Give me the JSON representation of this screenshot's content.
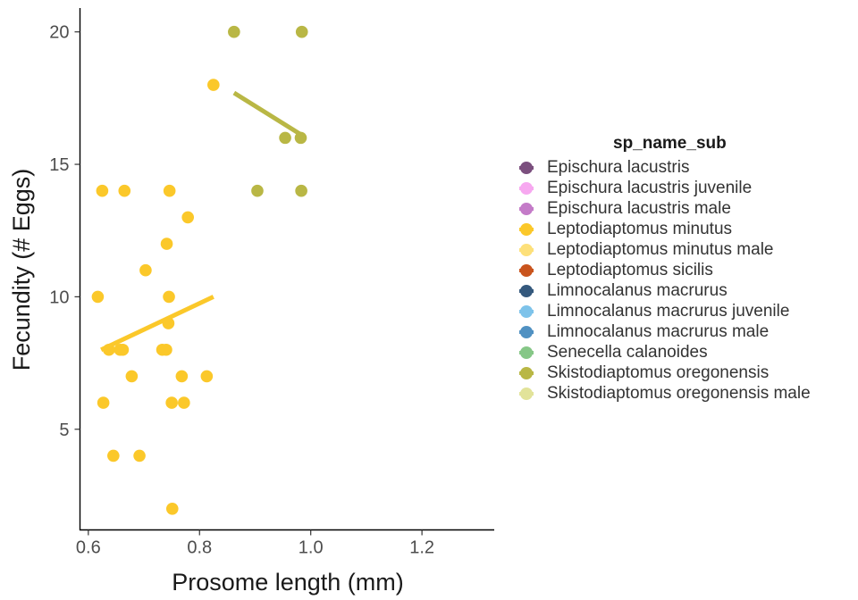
{
  "chart_data": {
    "type": "scatter",
    "xlabel": "Prosome length (mm)",
    "ylabel": "Fecundity (# Eggs)",
    "xlim": [
      0.585,
      1.33
    ],
    "ylim": [
      1.2,
      20.9
    ],
    "x_ticks": [
      0.6,
      0.8,
      1.0,
      1.2
    ],
    "x_tick_labels": [
      "0.6",
      "0.8",
      "1.0",
      "1.2"
    ],
    "y_ticks": [
      5,
      10,
      15,
      20
    ],
    "y_tick_labels": [
      "5",
      "10",
      "15",
      "20"
    ],
    "grid": false,
    "legend_position": "right",
    "legend_title": "sp_name_sub",
    "legend": [
      {
        "label": "Epischura lacustris",
        "color": "#7b4f7e"
      },
      {
        "label": "Epischura lacustris juvenile",
        "color": "#f7a8f0"
      },
      {
        "label": "Epischura lacustris male",
        "color": "#c47bc8"
      },
      {
        "label": "Leptodiaptomus minutus",
        "color": "#fbc82a"
      },
      {
        "label": "Leptodiaptomus minutus male",
        "color": "#fde07a"
      },
      {
        "label": "Leptodiaptomus sicilis",
        "color": "#c9541d"
      },
      {
        "label": "Limnocalanus macrurus",
        "color": "#35597d"
      },
      {
        "label": "Limnocalanus macrurus juvenile",
        "color": "#7ec3ea"
      },
      {
        "label": "Limnocalanus macrurus male",
        "color": "#5091c2"
      },
      {
        "label": "Senecella calanoides",
        "color": "#86c787"
      },
      {
        "label": "Skistodiaptomus oregonensis",
        "color": "#b9b745"
      },
      {
        "label": "Skistodiaptomus oregonensis male",
        "color": "#e2e39a"
      }
    ],
    "series": [
      {
        "name": "Leptodiaptomus minutus",
        "color": "#fbc82a",
        "points": [
          {
            "x": 0.617,
            "y": 10
          },
          {
            "x": 0.625,
            "y": 14
          },
          {
            "x": 0.627,
            "y": 6
          },
          {
            "x": 0.637,
            "y": 8
          },
          {
            "x": 0.645,
            "y": 4
          },
          {
            "x": 0.657,
            "y": 8
          },
          {
            "x": 0.662,
            "y": 8
          },
          {
            "x": 0.665,
            "y": 14
          },
          {
            "x": 0.678,
            "y": 7
          },
          {
            "x": 0.692,
            "y": 4
          },
          {
            "x": 0.703,
            "y": 11
          },
          {
            "x": 0.733,
            "y": 8
          },
          {
            "x": 0.74,
            "y": 8
          },
          {
            "x": 0.741,
            "y": 12
          },
          {
            "x": 0.744,
            "y": 9
          },
          {
            "x": 0.745,
            "y": 10
          },
          {
            "x": 0.746,
            "y": 14
          },
          {
            "x": 0.75,
            "y": 6
          },
          {
            "x": 0.751,
            "y": 2
          },
          {
            "x": 0.768,
            "y": 7
          },
          {
            "x": 0.772,
            "y": 6
          },
          {
            "x": 0.779,
            "y": 13
          },
          {
            "x": 0.813,
            "y": 7
          },
          {
            "x": 0.825,
            "y": 18
          }
        ],
        "trend": [
          {
            "x": 0.623,
            "y": 8.0
          },
          {
            "x": 0.825,
            "y": 10.0
          }
        ]
      },
      {
        "name": "Skistodiaptomus oregonensis",
        "color": "#b9b745",
        "points": [
          {
            "x": 0.862,
            "y": 20
          },
          {
            "x": 0.904,
            "y": 14
          },
          {
            "x": 0.954,
            "y": 16
          },
          {
            "x": 0.982,
            "y": 16
          },
          {
            "x": 0.983,
            "y": 14
          },
          {
            "x": 0.984,
            "y": 20
          }
        ],
        "trend": [
          {
            "x": 0.862,
            "y": 17.7
          },
          {
            "x": 0.984,
            "y": 16.1
          }
        ]
      }
    ]
  }
}
